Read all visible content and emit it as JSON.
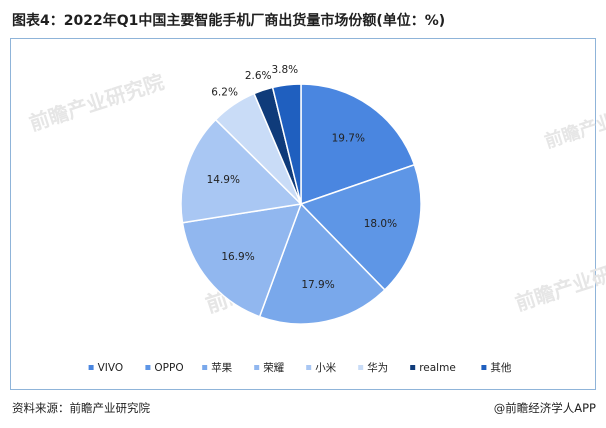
{
  "title": "图表4：2022年Q1中国主要智能手机厂商出货量市场份额(单位：%)",
  "source": "资料来源：前瞻产业研究院",
  "brand": "@前瞻经济学人APP",
  "watermark": "前瞻产业研究院",
  "chart_data": {
    "type": "pie",
    "title": "图表4：2022年Q1中国主要智能手机厂商出货量市场份额(单位：%)",
    "legend_position": "bottom",
    "slices": [
      {
        "name": "VIVO",
        "value": 19.7,
        "label": "19.7%",
        "color": "#4a86e0"
      },
      {
        "name": "OPPO",
        "value": 18.0,
        "label": "18.0%",
        "color": "#5e96e6"
      },
      {
        "name": "苹果",
        "value": 17.9,
        "label": "17.9%",
        "color": "#79a8eb"
      },
      {
        "name": "荣耀",
        "value": 16.9,
        "label": "16.9%",
        "color": "#91b7ef"
      },
      {
        "name": "小米",
        "value": 14.9,
        "label": "14.9%",
        "color": "#a9c7f3"
      },
      {
        "name": "华为",
        "value": 6.2,
        "label": "6.2%",
        "color": "#c9dcf7"
      },
      {
        "name": "realme",
        "value": 2.6,
        "label": "2.6%",
        "color": "#0f3b7a"
      },
      {
        "name": "其他",
        "value": 3.8,
        "label": "3.8%",
        "color": "#1f5fbf"
      }
    ]
  }
}
